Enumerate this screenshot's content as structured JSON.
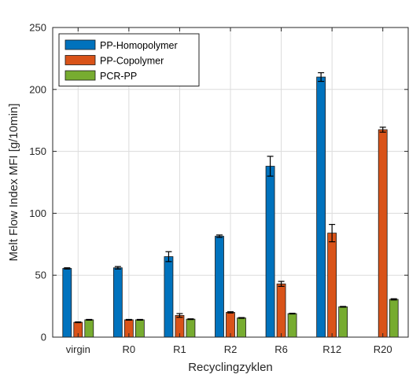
{
  "chart_data": {
    "type": "bar",
    "title": "",
    "xlabel": "Recyclingzyklen",
    "ylabel": "Melt Flow Index MFI [g/10min]",
    "ylim": [
      0,
      250
    ],
    "yticks": [
      0,
      50,
      100,
      150,
      200,
      250
    ],
    "grid": true,
    "legend_position": "top-left",
    "categories": [
      "virgin",
      "R0",
      "R1",
      "R2",
      "R6",
      "R12",
      "R20"
    ],
    "series": [
      {
        "name": "PP-Homopolymer",
        "color": "#0072BD",
        "values": [
          55.5,
          56,
          65,
          81.5,
          138,
          210,
          null
        ],
        "errors": [
          0.5,
          1,
          4,
          1,
          8,
          3.5,
          null
        ]
      },
      {
        "name": "PP-Copolymer",
        "color": "#D95319",
        "values": [
          12,
          14,
          17.5,
          20,
          43,
          84,
          167.5
        ],
        "errors": [
          0.3,
          0.3,
          1.5,
          0.5,
          2,
          7,
          2
        ]
      },
      {
        "name": "PCR-PP",
        "color": "#77AC30",
        "values": [
          14,
          14,
          14.5,
          15.5,
          19,
          24.5,
          30.5
        ],
        "errors": [
          0.3,
          0.3,
          0.3,
          0.3,
          0.3,
          0.3,
          0.5
        ]
      }
    ]
  }
}
